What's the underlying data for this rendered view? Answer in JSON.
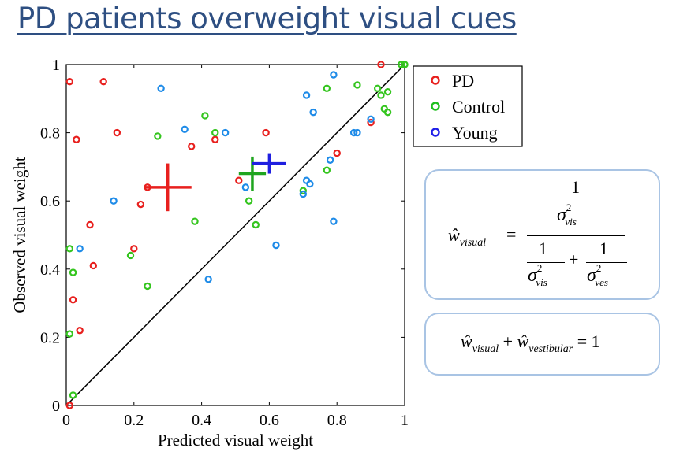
{
  "page": {
    "title": "PD patients overweight visual cues"
  },
  "chart_data": {
    "type": "scatter",
    "title": "",
    "xlabel": "Predicted visual weight",
    "ylabel": "Observed visual weight",
    "xlim": [
      0,
      1
    ],
    "ylim": [
      0,
      1
    ],
    "xticks": [
      "0",
      "0.2",
      "0.4",
      "0.6",
      "0.8",
      "1"
    ],
    "yticks": [
      "0",
      "0.2",
      "0.4",
      "0.6",
      "0.8",
      "1"
    ],
    "grid": false,
    "legend_position": "top-right",
    "identity_line": true,
    "series": [
      {
        "name": "PD",
        "color": "#e8201e",
        "points": [
          [
            0.01,
            0.95
          ],
          [
            0.11,
            0.95
          ],
          [
            0.03,
            0.78
          ],
          [
            0.15,
            0.8
          ],
          [
            0.37,
            0.76
          ],
          [
            0.44,
            0.78
          ],
          [
            0.59,
            0.8
          ],
          [
            0.24,
            0.64
          ],
          [
            0.22,
            0.59
          ],
          [
            0.07,
            0.53
          ],
          [
            0.2,
            0.46
          ],
          [
            0.08,
            0.41
          ],
          [
            0.02,
            0.31
          ],
          [
            0.04,
            0.22
          ],
          [
            0.01,
            0.0
          ],
          [
            0.51,
            0.66
          ],
          [
            0.93,
            1.0
          ],
          [
            0.9,
            0.83
          ],
          [
            0.8,
            0.74
          ]
        ],
        "mean": {
          "x": 0.3,
          "y": 0.64,
          "x_err": 0.07,
          "y_err": 0.07
        }
      },
      {
        "name": "Control",
        "color": "#34c51e",
        "points": [
          [
            0.27,
            0.79
          ],
          [
            0.41,
            0.85
          ],
          [
            0.44,
            0.8
          ],
          [
            0.38,
            0.54
          ],
          [
            0.19,
            0.44
          ],
          [
            0.24,
            0.35
          ],
          [
            0.01,
            0.46
          ],
          [
            0.02,
            0.39
          ],
          [
            0.01,
            0.21
          ],
          [
            0.02,
            0.03
          ],
          [
            0.56,
            0.53
          ],
          [
            0.54,
            0.6
          ],
          [
            0.7,
            0.63
          ],
          [
            0.77,
            0.69
          ],
          [
            0.77,
            0.93
          ],
          [
            0.86,
            0.94
          ],
          [
            0.92,
            0.93
          ],
          [
            0.93,
            0.91
          ],
          [
            0.95,
            0.92
          ],
          [
            0.94,
            0.87
          ],
          [
            0.95,
            0.86
          ],
          [
            0.99,
            1.0
          ],
          [
            1.0,
            1.0
          ]
        ],
        "mean": {
          "x": 0.55,
          "y": 0.68,
          "x_err": 0.04,
          "y_err": 0.05
        }
      },
      {
        "name": "Young",
        "color": "#1e8be8",
        "points": [
          [
            0.28,
            0.93
          ],
          [
            0.35,
            0.81
          ],
          [
            0.47,
            0.8
          ],
          [
            0.14,
            0.6
          ],
          [
            0.04,
            0.46
          ],
          [
            0.42,
            0.37
          ],
          [
            0.53,
            0.64
          ],
          [
            0.62,
            0.47
          ],
          [
            0.7,
            0.62
          ],
          [
            0.71,
            0.66
          ],
          [
            0.72,
            0.65
          ],
          [
            0.78,
            0.72
          ],
          [
            0.79,
            0.54
          ],
          [
            0.79,
            0.97
          ],
          [
            0.73,
            0.86
          ],
          [
            0.71,
            0.91
          ],
          [
            0.85,
            0.8
          ],
          [
            0.86,
            0.8
          ],
          [
            0.9,
            0.84
          ]
        ],
        "mean": {
          "x": 0.6,
          "y": 0.71,
          "x_err": 0.05,
          "y_err": 0.03
        }
      }
    ]
  },
  "legend_colors": {
    "PD": "#e8201e",
    "Control": "#1fbf1f",
    "Young": "#1f1fe8"
  },
  "mean_colors": {
    "PD": "#e8201e",
    "Control": "#1fa51f",
    "Young": "#1f1fe0"
  },
  "formula1": {
    "w": "ŵ",
    "sub": "visual",
    "eq": "=",
    "one": "1",
    "sigma": "σ",
    "sq": "2",
    "vis": "vis",
    "ves": "ves",
    "plus": "+"
  },
  "formula2": {
    "w1": "ŵ",
    "sub1": "visual",
    "plus": "+",
    "w2": "ŵ",
    "sub2": "vestibular",
    "eq": "= 1"
  }
}
